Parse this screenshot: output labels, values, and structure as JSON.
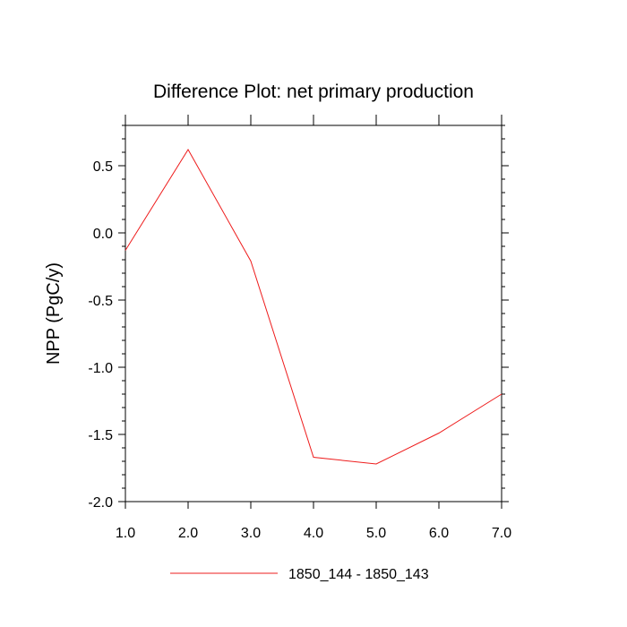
{
  "chart_data": {
    "type": "line",
    "title": "Difference Plot: net primary production",
    "xlabel": "",
    "ylabel": "NPP  (PgC/y)",
    "xlim": [
      1.0,
      7.0
    ],
    "ylim": [
      -2.0,
      0.8
    ],
    "x_ticks": [
      1.0,
      2.0,
      3.0,
      4.0,
      5.0,
      6.0,
      7.0
    ],
    "x_tick_labels": [
      "1.0",
      "2.0",
      "3.0",
      "4.0",
      "5.0",
      "6.0",
      "7.0"
    ],
    "y_ticks": [
      0.5,
      0.0,
      -0.5,
      -1.0,
      -1.5,
      -2.0
    ],
    "y_tick_labels": [
      "0.5",
      "0.0",
      "-0.5",
      "-1.0",
      "-1.5",
      "-2.0"
    ],
    "grid": false,
    "legend_position": "bottom-center",
    "series": [
      {
        "name": "1850_144 - 1850_143",
        "color": "#ee1c1c",
        "x": [
          1,
          2,
          3,
          4,
          5,
          6,
          7
        ],
        "y": [
          -0.13,
          0.62,
          -0.21,
          -1.67,
          -1.72,
          -1.49,
          -1.2
        ]
      }
    ]
  }
}
